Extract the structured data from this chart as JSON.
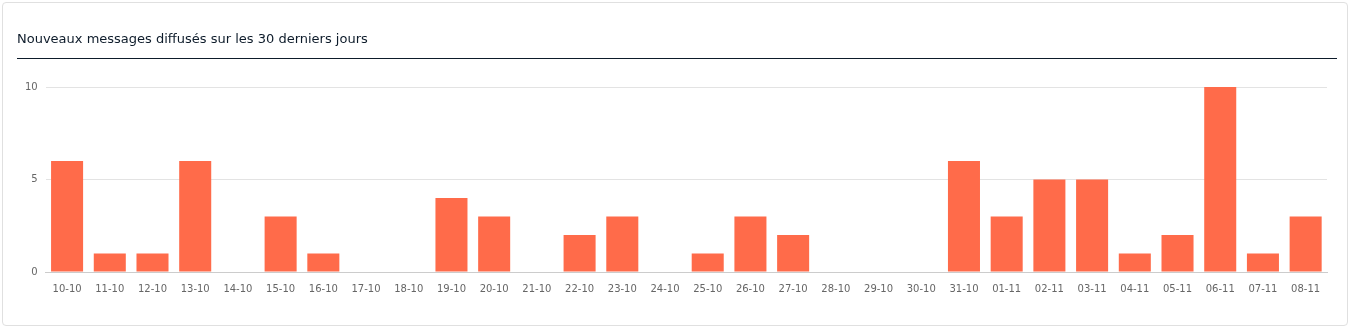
{
  "chart_data": {
    "type": "bar",
    "title": "Nouveaux messages diffusés sur les 30 derniers jours",
    "categories": [
      "10-10",
      "11-10",
      "12-10",
      "13-10",
      "14-10",
      "15-10",
      "16-10",
      "17-10",
      "18-10",
      "19-10",
      "20-10",
      "21-10",
      "22-10",
      "23-10",
      "24-10",
      "25-10",
      "26-10",
      "27-10",
      "28-10",
      "29-10",
      "30-10",
      "31-10",
      "01-11",
      "02-11",
      "03-11",
      "04-11",
      "05-11",
      "06-11",
      "07-11",
      "08-11"
    ],
    "values": [
      6,
      1,
      1,
      6,
      0,
      3,
      1,
      0,
      0,
      4,
      3,
      0,
      2,
      3,
      0,
      1,
      3,
      2,
      0,
      0,
      0,
      6,
      3,
      5,
      5,
      1,
      2,
      10,
      1,
      3
    ],
    "color": "#ff6b4a",
    "ylim": [
      0,
      10
    ],
    "yticks": [
      0,
      5,
      10
    ],
    "grid": "y",
    "legend": false
  }
}
